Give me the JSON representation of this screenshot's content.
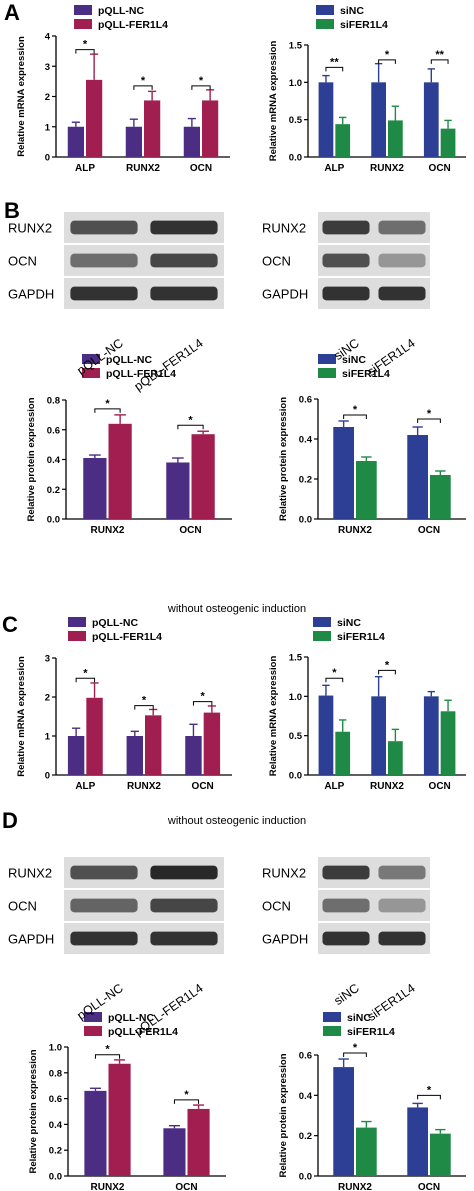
{
  "panels": [
    {
      "id": "A",
      "letter": "A",
      "header": ""
    },
    {
      "id": "B",
      "letter": "B",
      "header": ""
    },
    {
      "id": "C",
      "letter": "C",
      "header": "without osteogenic induction"
    },
    {
      "id": "D",
      "letter": "D",
      "header": "without osteogenic induction"
    }
  ],
  "colors": {
    "pqll_nc": "#4b2d83",
    "pqll_fer1l4": "#a01f50",
    "sinc": "#2c3f94",
    "sifer1l4": "#1f8a46"
  },
  "blots": [
    {
      "id": "B-left",
      "rows": [
        "RUNX2",
        "OCN",
        "GAPDH"
      ],
      "lanes": [
        "pQLL-NC",
        "pQLL-FER1L4"
      ],
      "intensity": [
        [
          0.7,
          0.85
        ],
        [
          0.55,
          0.75
        ],
        [
          0.85,
          0.85
        ]
      ]
    },
    {
      "id": "B-right",
      "rows": [
        "RUNX2",
        "OCN",
        "GAPDH"
      ],
      "lanes": [
        "siNC",
        "siFER1L4"
      ],
      "intensity": [
        [
          0.8,
          0.55
        ],
        [
          0.7,
          0.35
        ],
        [
          0.85,
          0.85
        ]
      ]
    },
    {
      "id": "D-left",
      "rows": [
        "RUNX2",
        "OCN",
        "GAPDH"
      ],
      "lanes": [
        "pQLL-NC",
        "pQLL-FER1L4"
      ],
      "intensity": [
        [
          0.7,
          0.9
        ],
        [
          0.6,
          0.75
        ],
        [
          0.85,
          0.85
        ]
      ]
    },
    {
      "id": "D-right",
      "rows": [
        "RUNX2",
        "OCN",
        "GAPDH"
      ],
      "lanes": [
        "siNC",
        "siFER1L4"
      ],
      "intensity": [
        [
          0.8,
          0.5
        ],
        [
          0.55,
          0.35
        ],
        [
          0.85,
          0.85
        ]
      ]
    }
  ],
  "chart_data": [
    {
      "id": "A-left",
      "type": "bar",
      "ylabel": "Relative mRNA expression",
      "ylim": [
        0,
        4
      ],
      "yticks": [
        0,
        1,
        2,
        3,
        4
      ],
      "categories": [
        "ALP",
        "RUNX2",
        "OCN"
      ],
      "series": [
        {
          "name": "pQLL-NC",
          "color": "#4b2d83",
          "values": [
            1.0,
            1.0,
            1.0
          ],
          "errors": [
            0.15,
            0.25,
            0.27
          ]
        },
        {
          "name": "pQLL-FER1L4",
          "color": "#a01f50",
          "values": [
            2.55,
            1.87,
            1.87
          ],
          "errors": [
            0.85,
            0.3,
            0.35
          ]
        }
      ],
      "significance": [
        "*",
        "*",
        "*"
      ],
      "sig_y": [
        3.55,
        2.35,
        2.35
      ]
    },
    {
      "id": "A-right",
      "type": "bar",
      "ylabel": "Relative mRNA expression",
      "ylim": [
        0,
        1.5
      ],
      "yticks": [
        0.0,
        0.5,
        1.0,
        1.5
      ],
      "tick_decimals": 1,
      "categories": [
        "ALP",
        "RUNX2",
        "OCN"
      ],
      "series": [
        {
          "name": "siNC",
          "color": "#2c3f94",
          "values": [
            1.0,
            1.0,
            1.0
          ],
          "errors": [
            0.09,
            0.25,
            0.18
          ]
        },
        {
          "name": "siFER1L4",
          "color": "#1f8a46",
          "values": [
            0.44,
            0.49,
            0.38
          ],
          "errors": [
            0.09,
            0.19,
            0.11
          ]
        }
      ],
      "significance": [
        "**",
        "*",
        "**"
      ],
      "sig_y": [
        1.2,
        1.3,
        1.3
      ]
    },
    {
      "id": "B-left",
      "type": "bar",
      "ylabel": "Relative protein expression",
      "ylim": [
        0,
        0.8
      ],
      "yticks": [
        0.0,
        0.2,
        0.4,
        0.6,
        0.8
      ],
      "tick_decimals": 1,
      "categories": [
        "RUNX2",
        "OCN"
      ],
      "series": [
        {
          "name": "pQLL-NC",
          "color": "#4b2d83",
          "values": [
            0.41,
            0.38
          ],
          "errors": [
            0.02,
            0.03
          ]
        },
        {
          "name": "pQLL-FER1L4",
          "color": "#a01f50",
          "values": [
            0.64,
            0.57
          ],
          "errors": [
            0.06,
            0.02
          ]
        }
      ],
      "significance": [
        "*",
        "*"
      ],
      "sig_y": [
        0.74,
        0.63
      ]
    },
    {
      "id": "B-right",
      "type": "bar",
      "ylabel": "Relative protein expression",
      "ylim": [
        0,
        0.6
      ],
      "yticks": [
        0.0,
        0.2,
        0.4,
        0.6
      ],
      "tick_decimals": 1,
      "categories": [
        "RUNX2",
        "OCN"
      ],
      "series": [
        {
          "name": "siNC",
          "color": "#2c3f94",
          "values": [
            0.46,
            0.42
          ],
          "errors": [
            0.03,
            0.04
          ]
        },
        {
          "name": "siFER1L4",
          "color": "#1f8a46",
          "values": [
            0.29,
            0.22
          ],
          "errors": [
            0.02,
            0.02
          ]
        }
      ],
      "significance": [
        "*",
        "*"
      ],
      "sig_y": [
        0.52,
        0.5
      ]
    },
    {
      "id": "C-left",
      "type": "bar",
      "ylabel": "Relative mRNA expression",
      "ylim": [
        0,
        3
      ],
      "yticks": [
        0,
        1,
        2,
        3
      ],
      "categories": [
        "ALP",
        "RUNX2",
        "OCN"
      ],
      "series": [
        {
          "name": "pQLL-NC",
          "color": "#4b2d83",
          "values": [
            1.0,
            1.0,
            1.0
          ],
          "errors": [
            0.2,
            0.12,
            0.3
          ]
        },
        {
          "name": "pQLL-FER1L4",
          "color": "#a01f50",
          "values": [
            1.98,
            1.53,
            1.6
          ],
          "errors": [
            0.38,
            0.15,
            0.17
          ]
        }
      ],
      "significance": [
        "*",
        "*",
        "*"
      ],
      "sig_y": [
        2.48,
        1.78,
        1.88
      ]
    },
    {
      "id": "C-right",
      "type": "bar",
      "ylabel": "Relative mRNA expression",
      "ylim": [
        0,
        1.5
      ],
      "yticks": [
        0.0,
        0.5,
        1.0,
        1.5
      ],
      "tick_decimals": 1,
      "categories": [
        "ALP",
        "RUNX2",
        "OCN"
      ],
      "series": [
        {
          "name": "siNC",
          "color": "#2c3f94",
          "values": [
            1.01,
            1.0,
            1.0
          ],
          "errors": [
            0.13,
            0.25,
            0.06
          ]
        },
        {
          "name": "siFER1L4",
          "color": "#1f8a46",
          "values": [
            0.55,
            0.43,
            0.81
          ],
          "errors": [
            0.15,
            0.15,
            0.14
          ]
        }
      ],
      "significance": [
        "*",
        "*",
        ""
      ],
      "sig_y": [
        1.23,
        1.33,
        0
      ]
    },
    {
      "id": "D-left",
      "type": "bar",
      "ylabel": "Relative protein expression",
      "ylim": [
        0,
        1.0
      ],
      "yticks": [
        0.0,
        0.2,
        0.4,
        0.6,
        0.8,
        1.0
      ],
      "tick_decimals": 1,
      "categories": [
        "RUNX2",
        "OCN"
      ],
      "series": [
        {
          "name": "pQLL-NC",
          "color": "#4b2d83",
          "values": [
            0.66,
            0.37
          ],
          "errors": [
            0.02,
            0.02
          ]
        },
        {
          "name": "pQLL-FER1L4",
          "color": "#a01f50",
          "values": [
            0.87,
            0.52
          ],
          "errors": [
            0.03,
            0.03
          ]
        }
      ],
      "significance": [
        "*",
        "*"
      ],
      "sig_y": [
        0.94,
        0.59
      ]
    },
    {
      "id": "D-right",
      "type": "bar",
      "ylabel": "Relative protein expression",
      "ylim": [
        0,
        0.6
      ],
      "yticks": [
        0.0,
        0.2,
        0.4,
        0.6
      ],
      "tick_decimals": 1,
      "categories": [
        "RUNX2",
        "OCN"
      ],
      "series": [
        {
          "name": "siNC",
          "color": "#2c3f94",
          "values": [
            0.54,
            0.34
          ],
          "errors": [
            0.04,
            0.02
          ]
        },
        {
          "name": "siFER1L4",
          "color": "#1f8a46",
          "values": [
            0.24,
            0.21
          ],
          "errors": [
            0.03,
            0.02
          ]
        }
      ],
      "significance": [
        "*",
        "*"
      ],
      "sig_y": [
        0.61,
        0.4
      ]
    }
  ]
}
